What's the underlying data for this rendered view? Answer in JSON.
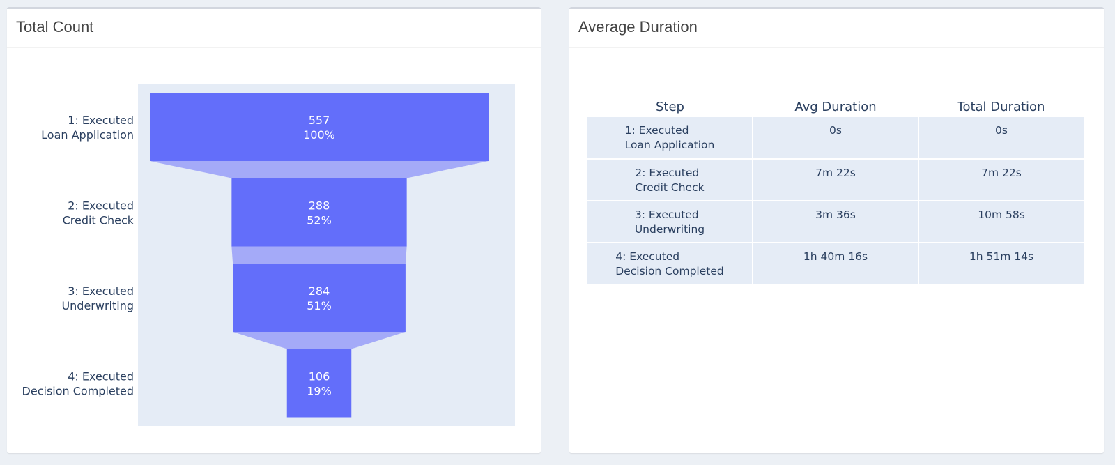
{
  "panels": {
    "count": {
      "title": "Total Count"
    },
    "duration": {
      "title": "Average Duration"
    }
  },
  "colors": {
    "bar": "#636efa",
    "connector": "#a4aaf8",
    "plot_bg": "#e5ecf6",
    "text": "#2a3f5f"
  },
  "chart_data": {
    "type": "funnel",
    "categories": [
      "1: Executed\nLoan Application",
      "2: Executed\nCredit Check",
      "3: Executed\nUnderwriting",
      "4: Executed\nDecision Completed"
    ],
    "values": [
      557,
      288,
      284,
      106
    ],
    "percent_labels": [
      "100%",
      "52%",
      "51%",
      "19%"
    ]
  },
  "duration_table": {
    "headers": [
      "Step",
      "Avg Duration",
      "Total Duration"
    ],
    "rows": [
      {
        "step": "1: Executed\nLoan Application",
        "avg": "0s",
        "total": "0s"
      },
      {
        "step": "2: Executed\nCredit Check",
        "avg": "7m 22s",
        "total": "7m 22s"
      },
      {
        "step": "3: Executed\nUnderwriting",
        "avg": "3m 36s",
        "total": "10m 58s"
      },
      {
        "step": "4: Executed\nDecision Completed",
        "avg": "1h 40m 16s",
        "total": "1h 51m 14s"
      }
    ]
  }
}
